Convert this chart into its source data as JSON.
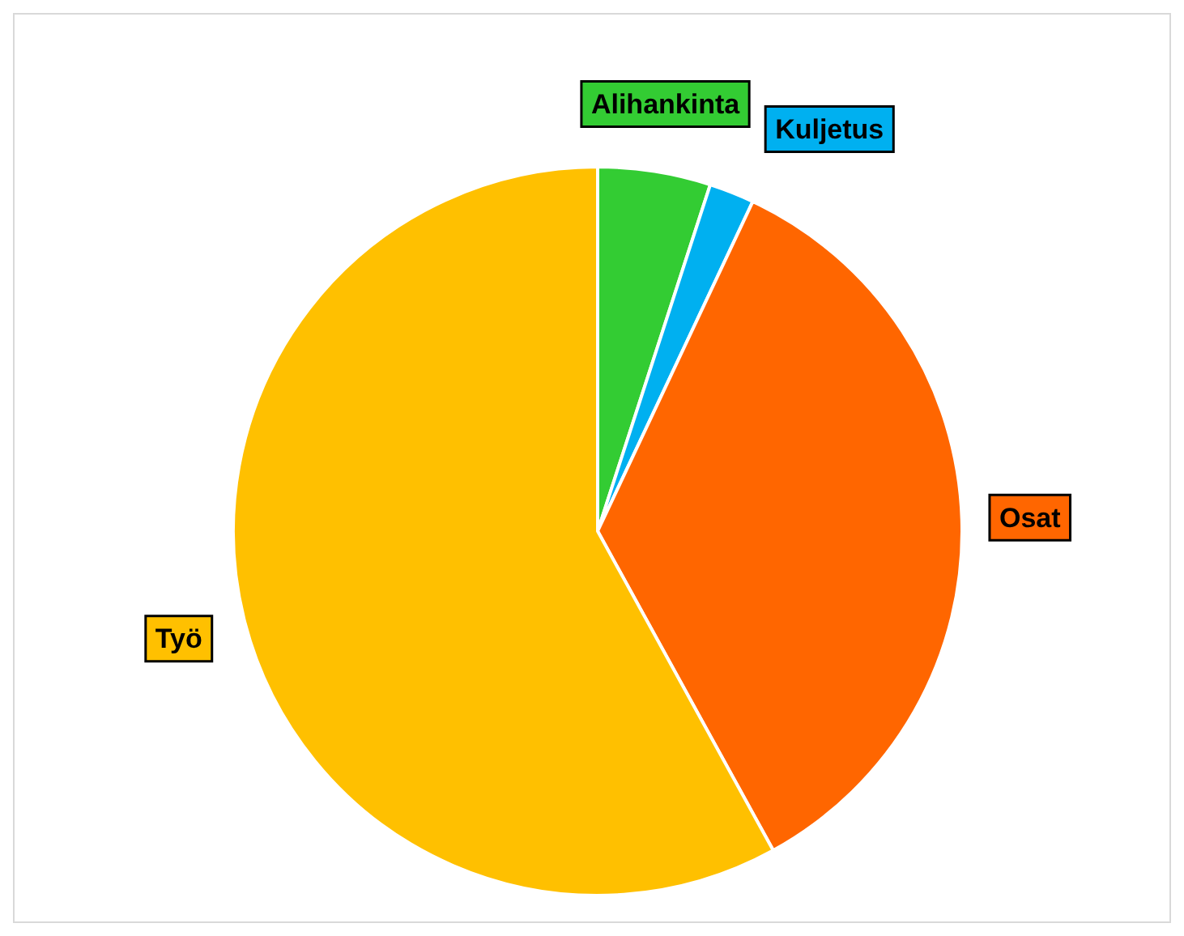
{
  "chart_data": {
    "type": "pie",
    "categories": [
      "Alihankinta",
      "Kuljetus",
      "Osat",
      "Työ"
    ],
    "values": [
      5,
      2,
      35,
      58
    ],
    "colors": [
      "#33cc33",
      "#00b0f0",
      "#ff6600",
      "#ffc000"
    ],
    "legend": false
  }
}
